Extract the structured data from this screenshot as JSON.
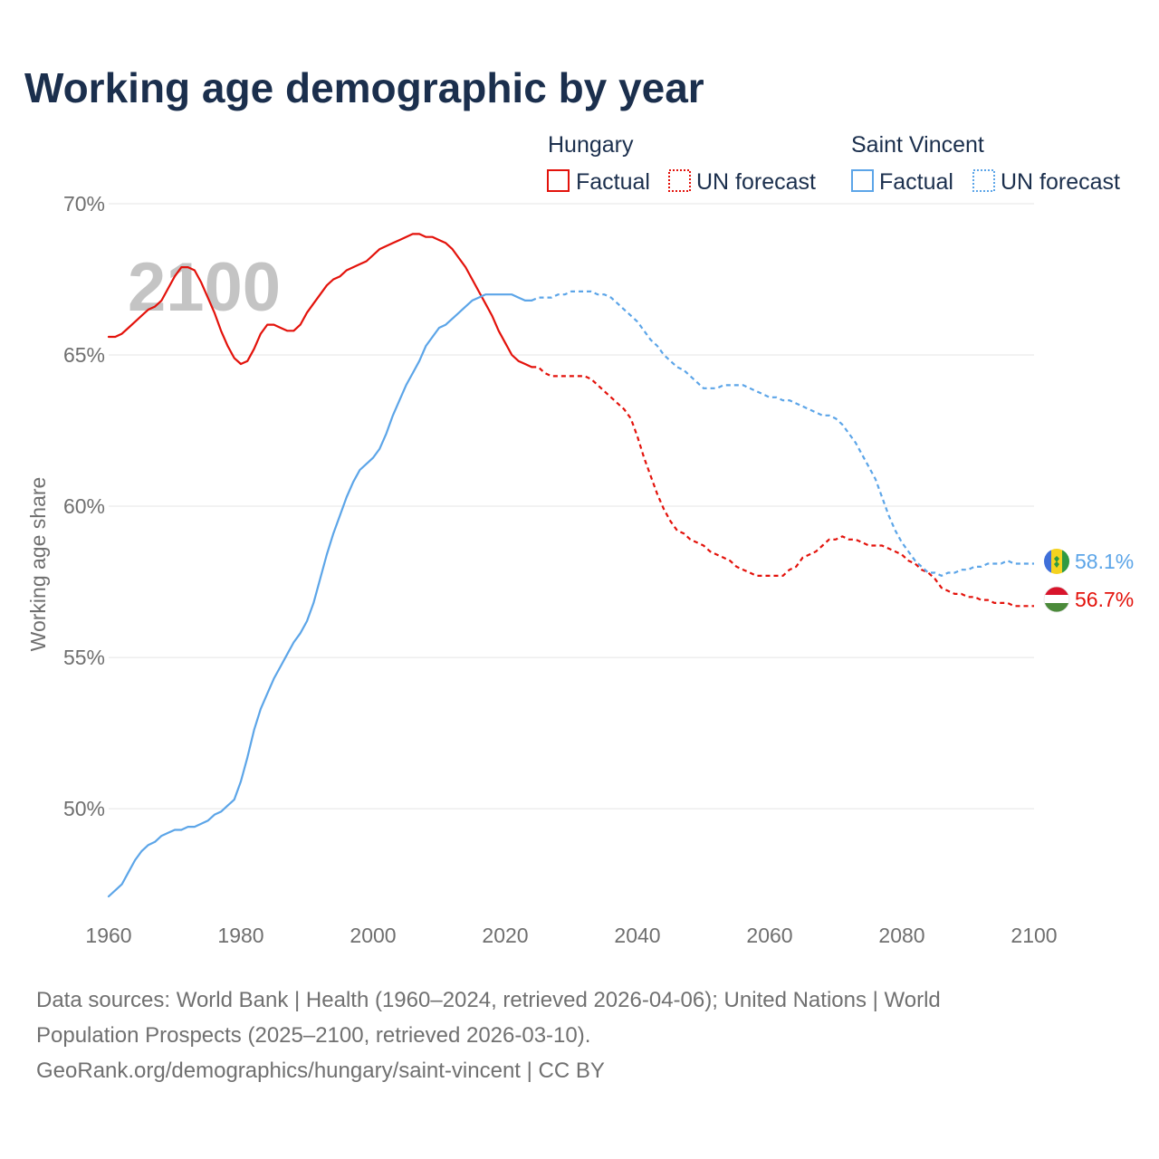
{
  "chart_data": {
    "type": "line",
    "title": "Working age demographic by year",
    "ylabel": "Working age share",
    "xlabel": "",
    "year_indicator": "2100",
    "xlim": [
      1960,
      2100
    ],
    "ylim": [
      46.5,
      70
    ],
    "x_ticks": [
      1960,
      1980,
      2000,
      2020,
      2040,
      2060,
      2080,
      2100
    ],
    "x_tick_labels": [
      "1960",
      "1980",
      "2000",
      "2020",
      "2040",
      "2060",
      "2080",
      "2100"
    ],
    "y_ticks": [
      50,
      55,
      60,
      65,
      70
    ],
    "y_tick_labels": [
      "50%",
      "55%",
      "60%",
      "65%",
      "70%"
    ],
    "grid": true,
    "legend": {
      "groups": [
        {
          "name": "Hungary",
          "color": "#e3120b",
          "factual_label": "Factual",
          "forecast_label": "UN forecast"
        },
        {
          "name": "Saint Vincent",
          "color": "#5ca5e8",
          "factual_label": "Factual",
          "forecast_label": "UN forecast"
        }
      ]
    },
    "series": [
      {
        "name": "Hungary",
        "color": "#e3120b",
        "end_label": "56.7%",
        "factual": {
          "x": [
            1960,
            1961,
            1962,
            1963,
            1964,
            1965,
            1966,
            1967,
            1968,
            1969,
            1970,
            1971,
            1972,
            1973,
            1974,
            1975,
            1976,
            1977,
            1978,
            1979,
            1980,
            1981,
            1982,
            1983,
            1984,
            1985,
            1986,
            1987,
            1988,
            1989,
            1990,
            1991,
            1992,
            1993,
            1994,
            1995,
            1996,
            1997,
            1998,
            1999,
            2000,
            2001,
            2002,
            2003,
            2004,
            2005,
            2006,
            2007,
            2008,
            2009,
            2010,
            2011,
            2012,
            2013,
            2014,
            2015,
            2016,
            2017,
            2018,
            2019,
            2020,
            2021,
            2022,
            2023,
            2024
          ],
          "y": [
            65.6,
            65.6,
            65.7,
            65.9,
            66.1,
            66.3,
            66.5,
            66.6,
            66.8,
            67.2,
            67.6,
            67.9,
            67.9,
            67.8,
            67.4,
            66.9,
            66.4,
            65.8,
            65.3,
            64.9,
            64.7,
            64.8,
            65.2,
            65.7,
            66.0,
            66.0,
            65.9,
            65.8,
            65.8,
            66.0,
            66.4,
            66.7,
            67.0,
            67.3,
            67.5,
            67.6,
            67.8,
            67.9,
            68.0,
            68.1,
            68.3,
            68.5,
            68.6,
            68.7,
            68.8,
            68.9,
            69.0,
            69.0,
            68.9,
            68.9,
            68.8,
            68.7,
            68.5,
            68.2,
            67.9,
            67.5,
            67.1,
            66.7,
            66.3,
            65.8,
            65.4,
            65.0,
            64.8,
            64.7,
            64.6
          ]
        },
        "forecast": {
          "x": [
            2024,
            2025,
            2026,
            2027,
            2028,
            2029,
            2030,
            2031,
            2032,
            2033,
            2034,
            2035,
            2036,
            2037,
            2038,
            2039,
            2040,
            2041,
            2042,
            2043,
            2044,
            2045,
            2046,
            2047,
            2048,
            2049,
            2050,
            2051,
            2052,
            2053,
            2054,
            2055,
            2056,
            2057,
            2058,
            2059,
            2060,
            2061,
            2062,
            2063,
            2064,
            2065,
            2066,
            2067,
            2068,
            2069,
            2070,
            2071,
            2072,
            2073,
            2074,
            2075,
            2076,
            2077,
            2078,
            2079,
            2080,
            2081,
            2082,
            2083,
            2084,
            2085,
            2086,
            2087,
            2088,
            2089,
            2090,
            2091,
            2092,
            2093,
            2094,
            2095,
            2096,
            2097,
            2098,
            2099,
            2100
          ],
          "y": [
            64.6,
            64.6,
            64.4,
            64.3,
            64.3,
            64.3,
            64.3,
            64.3,
            64.3,
            64.2,
            64.0,
            63.8,
            63.6,
            63.4,
            63.2,
            62.9,
            62.3,
            61.6,
            61.0,
            60.4,
            59.9,
            59.5,
            59.2,
            59.1,
            58.9,
            58.8,
            58.7,
            58.5,
            58.4,
            58.3,
            58.2,
            58.0,
            57.9,
            57.8,
            57.7,
            57.7,
            57.7,
            57.7,
            57.7,
            57.9,
            58.0,
            58.3,
            58.4,
            58.5,
            58.7,
            58.9,
            58.9,
            59.0,
            58.9,
            58.9,
            58.8,
            58.7,
            58.7,
            58.7,
            58.6,
            58.5,
            58.4,
            58.2,
            58.1,
            57.9,
            57.8,
            57.6,
            57.3,
            57.2,
            57.1,
            57.1,
            57.0,
            57.0,
            56.9,
            56.9,
            56.8,
            56.8,
            56.8,
            56.7,
            56.7,
            56.7,
            56.7
          ]
        }
      },
      {
        "name": "Saint Vincent",
        "color": "#5ca5e8",
        "end_label": "58.1%",
        "factual": {
          "x": [
            1960,
            1961,
            1962,
            1963,
            1964,
            1965,
            1966,
            1967,
            1968,
            1969,
            1970,
            1971,
            1972,
            1973,
            1974,
            1975,
            1976,
            1977,
            1978,
            1979,
            1980,
            1981,
            1982,
            1983,
            1984,
            1985,
            1986,
            1987,
            1988,
            1989,
            1990,
            1991,
            1992,
            1993,
            1994,
            1995,
            1996,
            1997,
            1998,
            1999,
            2000,
            2001,
            2002,
            2003,
            2004,
            2005,
            2006,
            2007,
            2008,
            2009,
            2010,
            2011,
            2012,
            2013,
            2014,
            2015,
            2016,
            2017,
            2018,
            2019,
            2020,
            2021,
            2022,
            2023,
            2024
          ],
          "y": [
            47.1,
            47.3,
            47.5,
            47.9,
            48.3,
            48.6,
            48.8,
            48.9,
            49.1,
            49.2,
            49.3,
            49.3,
            49.4,
            49.4,
            49.5,
            49.6,
            49.8,
            49.9,
            50.1,
            50.3,
            50.9,
            51.7,
            52.6,
            53.3,
            53.8,
            54.3,
            54.7,
            55.1,
            55.5,
            55.8,
            56.2,
            56.8,
            57.6,
            58.4,
            59.1,
            59.7,
            60.3,
            60.8,
            61.2,
            61.4,
            61.6,
            61.9,
            62.4,
            63.0,
            63.5,
            64.0,
            64.4,
            64.8,
            65.3,
            65.6,
            65.9,
            66.0,
            66.2,
            66.4,
            66.6,
            66.8,
            66.9,
            67.0,
            67.0,
            67.0,
            67.0,
            67.0,
            66.9,
            66.8,
            66.8
          ]
        },
        "forecast": {
          "x": [
            2024,
            2025,
            2026,
            2027,
            2028,
            2029,
            2030,
            2031,
            2032,
            2033,
            2034,
            2035,
            2036,
            2037,
            2038,
            2039,
            2040,
            2041,
            2042,
            2043,
            2044,
            2045,
            2046,
            2047,
            2048,
            2049,
            2050,
            2051,
            2052,
            2053,
            2054,
            2055,
            2056,
            2057,
            2058,
            2059,
            2060,
            2061,
            2062,
            2063,
            2064,
            2065,
            2066,
            2067,
            2068,
            2069,
            2070,
            2071,
            2072,
            2073,
            2074,
            2075,
            2076,
            2077,
            2078,
            2079,
            2080,
            2081,
            2082,
            2083,
            2084,
            2085,
            2086,
            2087,
            2088,
            2089,
            2090,
            2091,
            2092,
            2093,
            2094,
            2095,
            2096,
            2097,
            2098,
            2099,
            2100
          ],
          "y": [
            66.8,
            66.9,
            66.9,
            66.9,
            67.0,
            67.0,
            67.1,
            67.1,
            67.1,
            67.1,
            67.0,
            67.0,
            66.9,
            66.7,
            66.5,
            66.3,
            66.1,
            65.8,
            65.5,
            65.3,
            65.0,
            64.8,
            64.6,
            64.5,
            64.3,
            64.1,
            63.9,
            63.9,
            63.9,
            64.0,
            64.0,
            64.0,
            64.0,
            63.9,
            63.8,
            63.7,
            63.6,
            63.6,
            63.5,
            63.5,
            63.4,
            63.3,
            63.2,
            63.1,
            63.0,
            63.0,
            62.9,
            62.7,
            62.4,
            62.1,
            61.7,
            61.3,
            60.9,
            60.3,
            59.7,
            59.2,
            58.8,
            58.5,
            58.2,
            58.0,
            57.8,
            57.8,
            57.7,
            57.8,
            57.8,
            57.9,
            57.9,
            58.0,
            58.0,
            58.1,
            58.1,
            58.1,
            58.2,
            58.1,
            58.1,
            58.1,
            58.1
          ]
        }
      }
    ]
  },
  "footer": {
    "line1": "Data sources: World Bank | Health (1960–2024, retrieved 2026-04-06); United Nations | World",
    "line2": "Population Prospects (2025–2100, retrieved 2026-03-10).",
    "line3": "GeoRank.org/demographics/hungary/saint-vincent | CC BY"
  }
}
